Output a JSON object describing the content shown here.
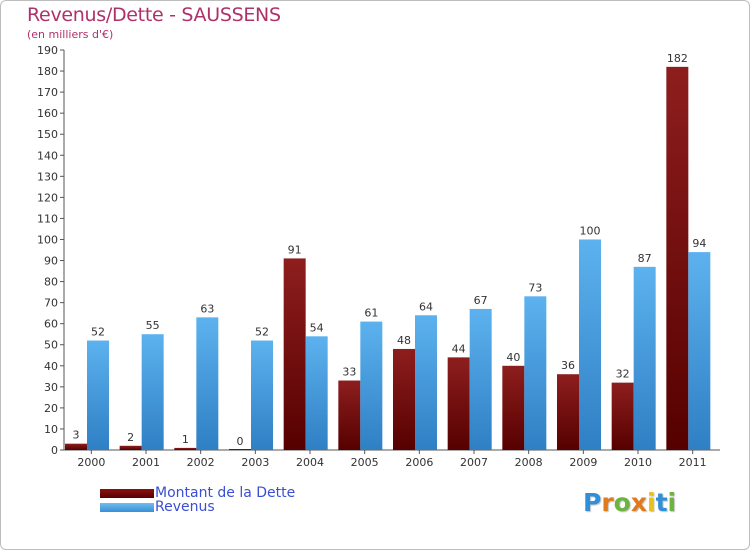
{
  "chart_data": {
    "type": "bar",
    "title": "Revenus/Dette - SAUSSENS",
    "subtitle": "(en milliers d'€)",
    "categories": [
      "2000",
      "2001",
      "2002",
      "2003",
      "2004",
      "2005",
      "2006",
      "2007",
      "2008",
      "2009",
      "2010",
      "2011"
    ],
    "series": [
      {
        "name": "Montant de la Dette",
        "color": "#7a0a0a",
        "values": [
          3,
          2,
          1,
          0,
          91,
          33,
          48,
          44,
          40,
          36,
          32,
          182
        ]
      },
      {
        "name": "Revenus",
        "color": "#4aa3e6",
        "values": [
          52,
          55,
          63,
          52,
          54,
          61,
          64,
          67,
          73,
          100,
          87,
          94
        ]
      }
    ],
    "ylim": [
      0,
      190
    ],
    "ytick_step": 10,
    "grid": false,
    "legend": "bottom-left"
  },
  "logo": {
    "text": "Proxiti"
  }
}
